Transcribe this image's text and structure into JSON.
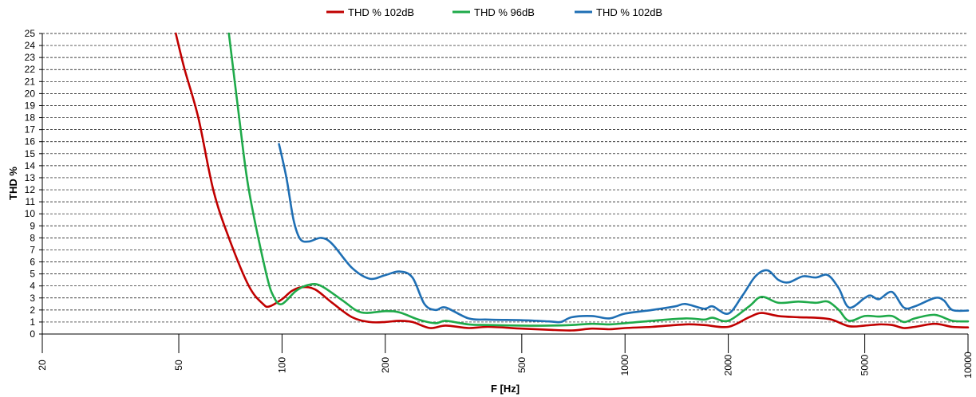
{
  "chart_data": {
    "type": "line",
    "xlabel": "F [Hz]",
    "ylabel": "THD %",
    "xscale": "log",
    "xlim": [
      20,
      10000
    ],
    "ylim": [
      0,
      25
    ],
    "x_ticks": [
      20,
      50,
      100,
      200,
      500,
      1000,
      2000,
      5000,
      10000
    ],
    "y_ticks": [
      0,
      1,
      2,
      3,
      4,
      5,
      6,
      7,
      8,
      9,
      10,
      11,
      12,
      13,
      14,
      15,
      16,
      17,
      18,
      19,
      20,
      21,
      22,
      23,
      24,
      25
    ],
    "grid": "horizontal dashed",
    "legend_position": "top",
    "series": [
      {
        "name": "THD % 102dB",
        "color": "#c00000",
        "points": [
          [
            49,
            25
          ],
          [
            52,
            22
          ],
          [
            57,
            18
          ],
          [
            63,
            12
          ],
          [
            70,
            8
          ],
          [
            80,
            4
          ],
          [
            88,
            2.5
          ],
          [
            92,
            2.3
          ],
          [
            100,
            2.9
          ],
          [
            107,
            3.6
          ],
          [
            115,
            3.9
          ],
          [
            125,
            3.7
          ],
          [
            140,
            2.6
          ],
          [
            160,
            1.4
          ],
          [
            180,
            1.0
          ],
          [
            200,
            1.0
          ],
          [
            220,
            1.1
          ],
          [
            240,
            1.0
          ],
          [
            270,
            0.5
          ],
          [
            300,
            0.7
          ],
          [
            350,
            0.5
          ],
          [
            400,
            0.6
          ],
          [
            500,
            0.45
          ],
          [
            600,
            0.35
          ],
          [
            700,
            0.3
          ],
          [
            800,
            0.45
          ],
          [
            900,
            0.4
          ],
          [
            1000,
            0.5
          ],
          [
            1200,
            0.6
          ],
          [
            1500,
            0.8
          ],
          [
            1700,
            0.75
          ],
          [
            2000,
            0.6
          ],
          [
            2300,
            1.4
          ],
          [
            2500,
            1.75
          ],
          [
            2800,
            1.5
          ],
          [
            3200,
            1.4
          ],
          [
            3600,
            1.35
          ],
          [
            4000,
            1.2
          ],
          [
            4500,
            0.65
          ],
          [
            5000,
            0.7
          ],
          [
            5500,
            0.8
          ],
          [
            6000,
            0.75
          ],
          [
            6500,
            0.5
          ],
          [
            7000,
            0.6
          ],
          [
            8000,
            0.85
          ],
          [
            9000,
            0.6
          ],
          [
            10000,
            0.55
          ]
        ]
      },
      {
        "name": "THD % 96dB",
        "color": "#1faa4a",
        "points": [
          [
            70,
            25
          ],
          [
            75,
            18
          ],
          [
            80,
            12
          ],
          [
            90,
            5
          ],
          [
            95,
            3
          ],
          [
            100,
            2.5
          ],
          [
            110,
            3.6
          ],
          [
            120,
            4.1
          ],
          [
            130,
            4.0
          ],
          [
            150,
            2.8
          ],
          [
            170,
            1.8
          ],
          [
            200,
            1.9
          ],
          [
            220,
            1.8
          ],
          [
            250,
            1.2
          ],
          [
            280,
            0.9
          ],
          [
            300,
            1.1
          ],
          [
            350,
            0.8
          ],
          [
            400,
            0.75
          ],
          [
            500,
            0.7
          ],
          [
            600,
            0.7
          ],
          [
            700,
            0.75
          ],
          [
            800,
            0.85
          ],
          [
            900,
            0.8
          ],
          [
            1000,
            0.9
          ],
          [
            1200,
            1.1
          ],
          [
            1500,
            1.3
          ],
          [
            1700,
            1.2
          ],
          [
            1800,
            1.35
          ],
          [
            2000,
            1.1
          ],
          [
            2300,
            2.3
          ],
          [
            2500,
            3.1
          ],
          [
            2800,
            2.6
          ],
          [
            3200,
            2.7
          ],
          [
            3600,
            2.6
          ],
          [
            3900,
            2.7
          ],
          [
            4200,
            2.0
          ],
          [
            4500,
            1.1
          ],
          [
            5000,
            1.5
          ],
          [
            5500,
            1.45
          ],
          [
            6000,
            1.5
          ],
          [
            6500,
            1.0
          ],
          [
            7000,
            1.3
          ],
          [
            8000,
            1.6
          ],
          [
            9000,
            1.1
          ],
          [
            10000,
            1.05
          ]
        ]
      },
      {
        "name": "THD % 102dB",
        "color": "#1f6fb4",
        "points": [
          [
            98,
            15.8
          ],
          [
            103,
            13
          ],
          [
            108,
            9.5
          ],
          [
            113,
            7.9
          ],
          [
            120,
            7.7
          ],
          [
            130,
            8.0
          ],
          [
            140,
            7.5
          ],
          [
            160,
            5.5
          ],
          [
            180,
            4.6
          ],
          [
            200,
            4.9
          ],
          [
            220,
            5.2
          ],
          [
            240,
            4.7
          ],
          [
            260,
            2.5
          ],
          [
            280,
            2.0
          ],
          [
            300,
            2.2
          ],
          [
            350,
            1.3
          ],
          [
            400,
            1.2
          ],
          [
            500,
            1.15
          ],
          [
            600,
            1.05
          ],
          [
            650,
            1.0
          ],
          [
            700,
            1.4
          ],
          [
            800,
            1.5
          ],
          [
            900,
            1.3
          ],
          [
            1000,
            1.7
          ],
          [
            1200,
            2.0
          ],
          [
            1400,
            2.3
          ],
          [
            1500,
            2.5
          ],
          [
            1700,
            2.1
          ],
          [
            1800,
            2.3
          ],
          [
            2000,
            1.7
          ],
          [
            2200,
            3.2
          ],
          [
            2400,
            4.8
          ],
          [
            2600,
            5.3
          ],
          [
            2800,
            4.5
          ],
          [
            3000,
            4.3
          ],
          [
            3300,
            4.8
          ],
          [
            3600,
            4.7
          ],
          [
            3900,
            4.9
          ],
          [
            4200,
            3.8
          ],
          [
            4500,
            2.2
          ],
          [
            5000,
            3.0
          ],
          [
            5200,
            3.2
          ],
          [
            5500,
            2.9
          ],
          [
            6000,
            3.5
          ],
          [
            6500,
            2.2
          ],
          [
            7000,
            2.3
          ],
          [
            8000,
            3.0
          ],
          [
            8500,
            2.8
          ],
          [
            9000,
            2.0
          ],
          [
            10000,
            1.95
          ]
        ]
      }
    ]
  }
}
